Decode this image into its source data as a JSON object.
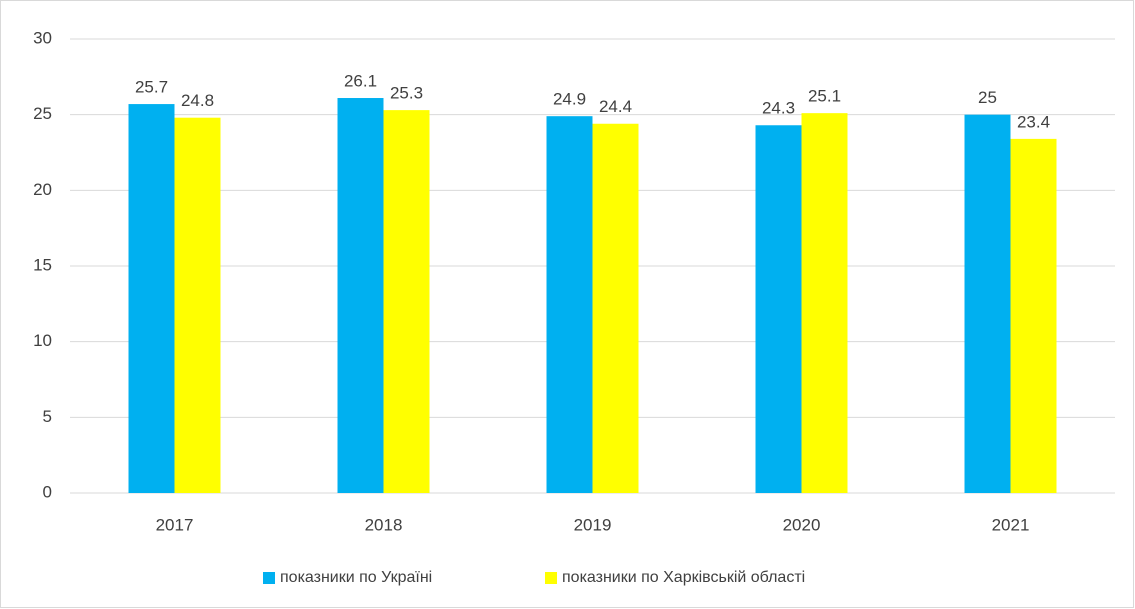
{
  "chart_data": {
    "type": "bar",
    "categories": [
      "2017",
      "2018",
      "2019",
      "2020",
      "2021"
    ],
    "series": [
      {
        "name": "показники по Україні",
        "color": "#00b0f0",
        "values": [
          25.7,
          26.1,
          24.9,
          24.3,
          25
        ]
      },
      {
        "name": "показники по Харківській області",
        "color": "#ffff00",
        "values": [
          24.8,
          25.3,
          24.4,
          25.1,
          23.4
        ]
      }
    ],
    "ylim": [
      0,
      30
    ],
    "yticks": [
      0,
      5,
      10,
      15,
      20,
      25,
      30
    ],
    "grid": true,
    "legend": "bottom"
  }
}
